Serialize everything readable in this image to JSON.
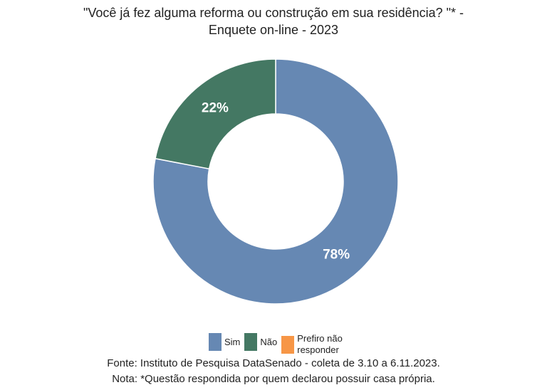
{
  "chart_data": {
    "type": "pie",
    "donut": true,
    "title": "\"Você já fez alguma reforma ou construção em sua residência? \"* - Enquete on-line - 2023",
    "categories": [
      "Sim",
      "Não",
      "Prefiro não responder"
    ],
    "values": [
      78,
      22,
      0
    ],
    "value_labels": [
      "78%",
      "22%",
      ""
    ],
    "unit": "%",
    "colors": [
      "#6688b3",
      "#447863",
      "#f79646"
    ],
    "legend_position": "bottom"
  },
  "legend": [
    {
      "label": "Sim",
      "color": "#6688b3"
    },
    {
      "label": "Não",
      "color": "#447863"
    },
    {
      "label": "Prefiro não responder",
      "color": "#f79646"
    }
  ],
  "footer": {
    "source": "Fonte: Instituto de Pesquisa DataSenado - coleta de 3.10 a 6.11.2023.",
    "note": "Nota: *Questão respondida por quem declarou possuir casa própria."
  }
}
